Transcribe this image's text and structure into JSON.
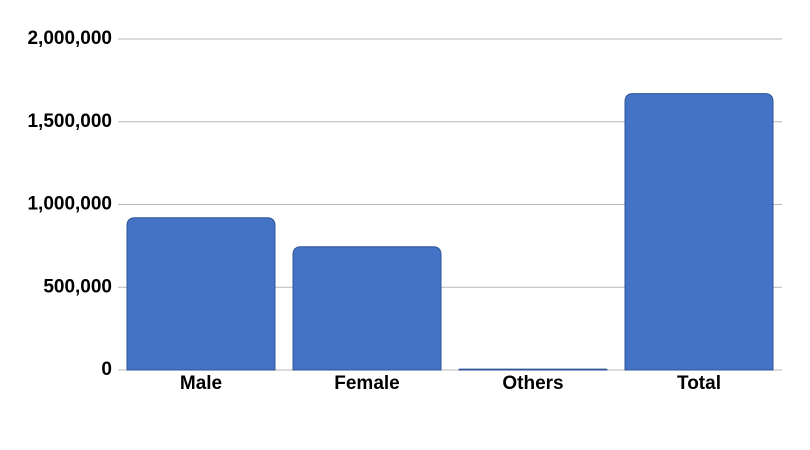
{
  "chart_data": {
    "type": "bar",
    "categories": [
      "Male",
      "Female",
      "Others",
      "Total"
    ],
    "values": [
      920000,
      745000,
      5000,
      1670000
    ],
    "color": "#4472c4",
    "ylim": [
      0,
      2000000
    ],
    "yticks": [
      0,
      {
        "value": 500000,
        "label": "500,000"
      },
      {
        "value": 1000000,
        "label": "1,000,000"
      },
      {
        "value": 1500000,
        "label": "1,500,000"
      },
      {
        "value": 2000000,
        "label": "2,000,000"
      }
    ],
    "grid": true
  }
}
